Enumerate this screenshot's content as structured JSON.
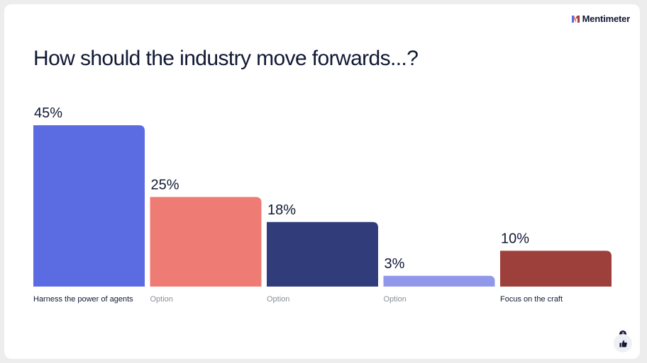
{
  "brand": {
    "name": "Mentimeter",
    "icon": "mentimeter-logo-icon"
  },
  "question": "How should the industry move forwards...?",
  "reactions": {
    "count": "3",
    "icon": "thumbs-up-icon"
  },
  "chart_data": {
    "type": "bar",
    "title": "How should the industry move forwards...?",
    "categories": [
      "Harness the power of agents",
      "Option",
      "Option",
      "Option",
      "Focus on the craft"
    ],
    "values": [
      45,
      25,
      18,
      3,
      10
    ],
    "value_labels": [
      "45%",
      "25%",
      "18%",
      "3%",
      "10%"
    ],
    "colors": [
      "#5b6be2",
      "#ee7b74",
      "#313c7a",
      "#9198ea",
      "#9d403c"
    ],
    "label_colors": [
      "#101834",
      "#8a8f9c",
      "#8a8f9c",
      "#8a8f9c",
      "#101834"
    ],
    "ylim": [
      0,
      45
    ],
    "grid": false,
    "xlabel": "",
    "ylabel": ""
  }
}
